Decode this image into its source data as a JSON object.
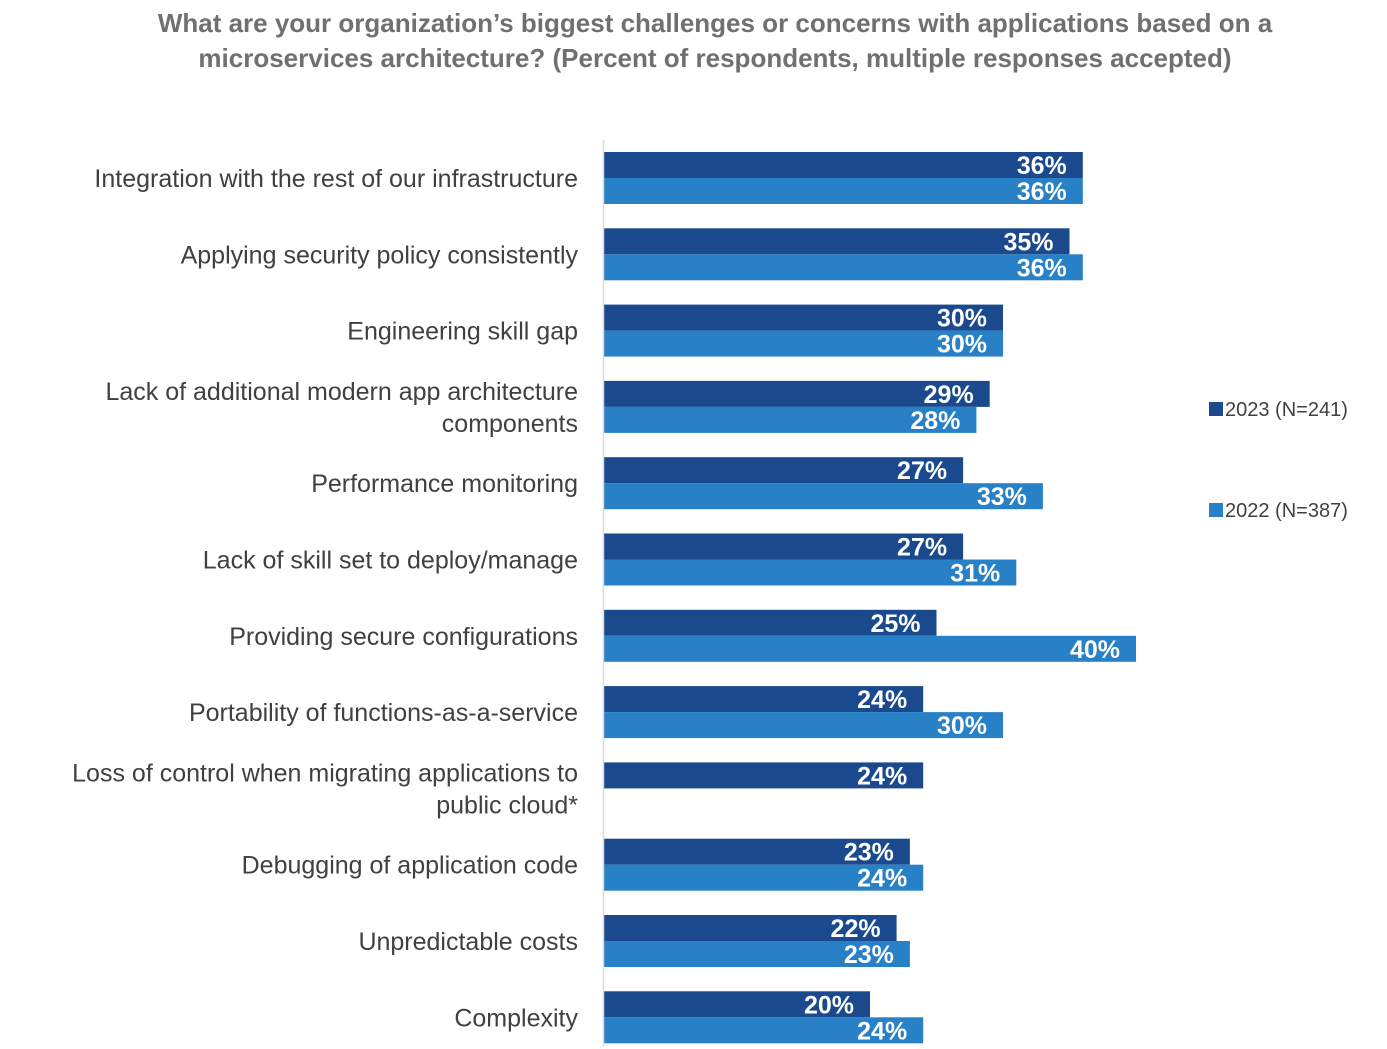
{
  "chart_data": {
    "type": "bar",
    "orientation": "horizontal",
    "title": "What are your organization’s biggest challenges or concerns with applications based on a microservices architecture? (Percent of respondents, multiple responses accepted)",
    "categories": [
      [
        "Integration with the rest of our infrastructure"
      ],
      [
        "Applying security policy consistently"
      ],
      [
        "Engineering skill gap"
      ],
      [
        "Lack of additional modern app architecture",
        "components"
      ],
      [
        "Performance monitoring"
      ],
      [
        "Lack of skill set to deploy/manage"
      ],
      [
        "Providing secure configurations"
      ],
      [
        "Portability of functions-as-a-service"
      ],
      [
        "Loss of control when migrating applications to",
        "public cloud*"
      ],
      [
        "Debugging of application code"
      ],
      [
        "Unpredictable costs"
      ],
      [
        "Complexity"
      ]
    ],
    "series": [
      {
        "name": "2023 (N=241)",
        "color": "#1a4a8d",
        "values": [
          36,
          35,
          30,
          29,
          27,
          27,
          25,
          24,
          24,
          23,
          22,
          20
        ]
      },
      {
        "name": "2022 (N=387)",
        "color": "#2880c6",
        "values": [
          36,
          36,
          30,
          28,
          33,
          31,
          40,
          30,
          null,
          24,
          23,
          24
        ]
      }
    ],
    "value_suffix": "%",
    "xlim": [
      0,
      45
    ],
    "grid": false,
    "legend_position": "right"
  }
}
